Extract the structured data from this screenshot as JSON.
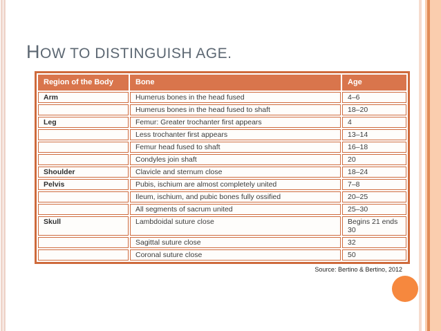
{
  "slide": {
    "title": "How to distinguish age.",
    "source": "Source: Bertino & Bertino, 2012"
  },
  "table": {
    "headers": [
      "Region of the Body",
      "Bone",
      "Age"
    ],
    "rows": [
      [
        "Arm",
        "Humerus bones in the head fused",
        "4–6"
      ],
      [
        "",
        "Humerus bones in the head fused to shaft",
        "18–20"
      ],
      [
        "Leg",
        "Femur: Greater trochanter first appears",
        "4"
      ],
      [
        "",
        "Less trochanter first appears",
        "13–14"
      ],
      [
        "",
        "Femur head fused to shaft",
        "16–18"
      ],
      [
        "",
        "Condyles join shaft",
        "20"
      ],
      [
        "Shoulder",
        "Clavicle and sternum close",
        "18–24"
      ],
      [
        "Pelvis",
        "Pubis, ischium are almost completely united",
        "7–8"
      ],
      [
        "",
        "Ileum, ischium, and pubic bones fully ossified",
        "20–25"
      ],
      [
        "",
        "All segments of sacrum united",
        "25–30"
      ],
      [
        "Skull",
        "Lambdoidal suture close",
        "Begins 21 ends 30"
      ],
      [
        "",
        "Sagittal suture close",
        "32"
      ],
      [
        "",
        "Coronal suture close",
        "50"
      ]
    ]
  },
  "colors": {
    "orange-header": "#D9754C",
    "orange-border": "#CE6A3C",
    "title-color": "#5C6772",
    "text-color": "#3B3B3B",
    "pink-stripe": "#EFD5CB",
    "right-thin": "#F6DCCF",
    "right-band": "#FACDAE",
    "right-band-line": "#E18C58",
    "circle-color": "#F6883E",
    "row-bg": "#FEFDFB",
    "source-color": "#222222"
  }
}
